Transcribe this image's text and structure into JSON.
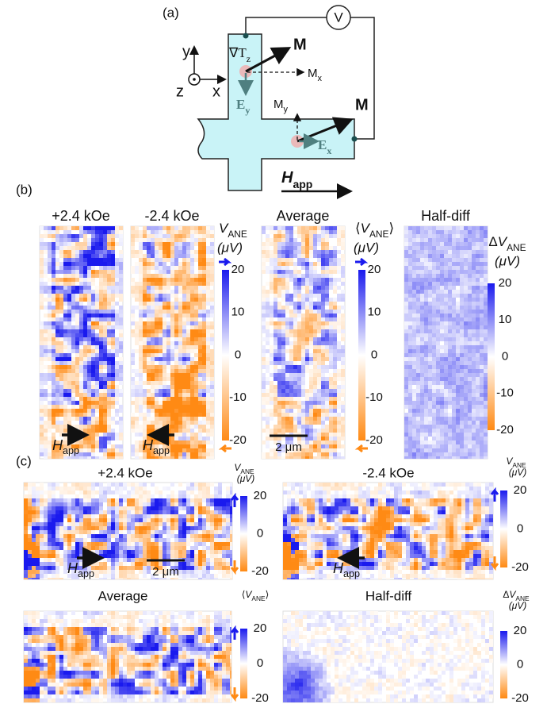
{
  "panel_a": {
    "label": "(a)",
    "axis_y": "y",
    "axis_z": "z",
    "axis_x": "x",
    "voltmeter": "V",
    "grad": "∇T",
    "grad_sub": "z",
    "m_top": "M",
    "mx": "M",
    "mx_sub": "x",
    "ey": "E",
    "ey_sub": "y",
    "my": "M",
    "my_sub": "y",
    "m_bottom": "M",
    "ex": "E",
    "ex_sub": "x",
    "h": "H",
    "h_sub": "app"
  },
  "panel_b": {
    "label": "(b)",
    "maps": [
      {
        "title": "+2.4 kOe",
        "h": "H",
        "h_sub": "app"
      },
      {
        "title": "-2.4 kOe",
        "h": "H",
        "h_sub": "app"
      },
      {
        "title": "Average",
        "scale_bar": "2 μm"
      },
      {
        "title": "Half-diff"
      }
    ],
    "colorbars": [
      {
        "symbol": "V",
        "sub": "ANE",
        "unit": "(μV)",
        "ticks": [
          20,
          10,
          0,
          -10,
          -20
        ]
      },
      {
        "prefix": "⟨",
        "symbol": "V",
        "sub": "ANE",
        "suffix": "⟩",
        "unit": "(μV)",
        "ticks": [
          20,
          10,
          0,
          -10,
          -20
        ]
      },
      {
        "prefix": "Δ",
        "symbol": "V",
        "sub": "ANE",
        "unit": "(μV)",
        "ticks": [
          20,
          10,
          0,
          -10,
          -20
        ]
      }
    ]
  },
  "panel_c": {
    "label": "(c)",
    "maps": [
      {
        "title": "+2.4 kOe",
        "h": "H",
        "h_sub": "app",
        "scale_bar": "2 μm"
      },
      {
        "title": "-2.4 kOe",
        "h": "H",
        "h_sub": "app"
      },
      {
        "title": "Average"
      },
      {
        "title": "Half-diff"
      }
    ],
    "colorbars": [
      {
        "symbol": "V",
        "sub": "ANE",
        "unit": "(μV)",
        "ticks": [
          20,
          0,
          -20
        ]
      },
      {
        "symbol": "V",
        "sub": "ANE",
        "unit": "(μV)",
        "ticks": [
          20,
          0,
          -20
        ]
      },
      {
        "prefix": "⟨",
        "symbol": "V",
        "sub": "ANE",
        "suffix": "⟩",
        "ticks": [
          20,
          0,
          -20
        ]
      },
      {
        "prefix": "Δ",
        "symbol": "V",
        "sub": "ANE",
        "unit": "(μV)",
        "ticks": [
          20,
          0,
          -20
        ]
      }
    ]
  }
}
